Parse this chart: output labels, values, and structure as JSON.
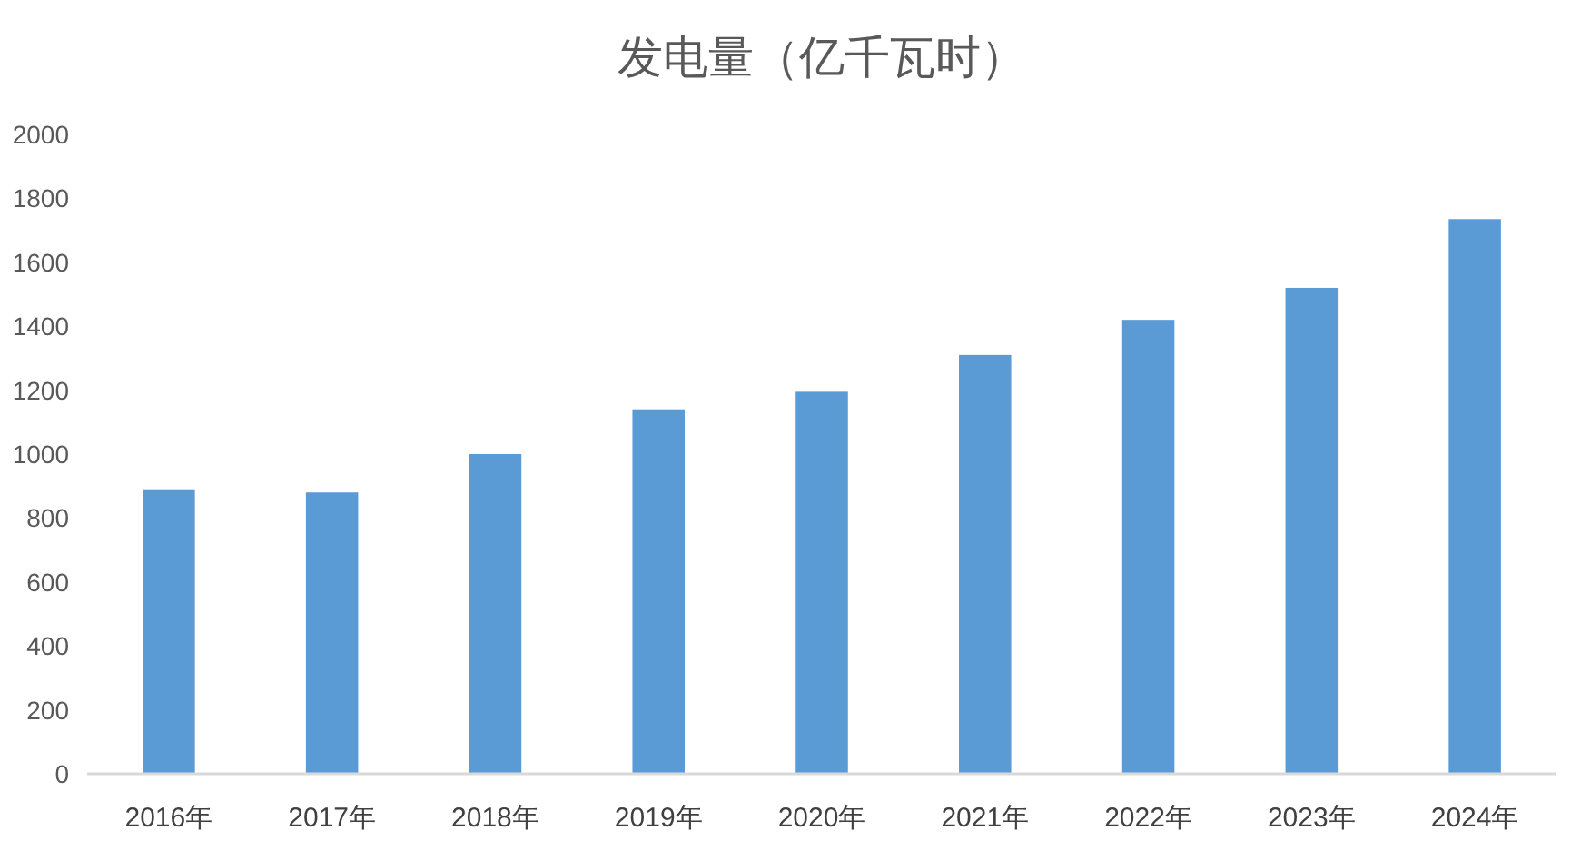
{
  "chart_data": {
    "type": "bar",
    "title": "发电量（亿千瓦时）",
    "categories": [
      "2016年",
      "2017年",
      "2018年",
      "2019年",
      "2020年",
      "2021年",
      "2022年",
      "2023年",
      "2024年"
    ],
    "values": [
      890,
      880,
      1000,
      1140,
      1195,
      1310,
      1420,
      1520,
      1735
    ],
    "color": "#5b9bd5",
    "ylim": [
      0,
      2000
    ],
    "yticks": [
      0,
      200,
      400,
      600,
      800,
      1000,
      1200,
      1400,
      1600,
      1800,
      2000
    ],
    "grid": false
  }
}
